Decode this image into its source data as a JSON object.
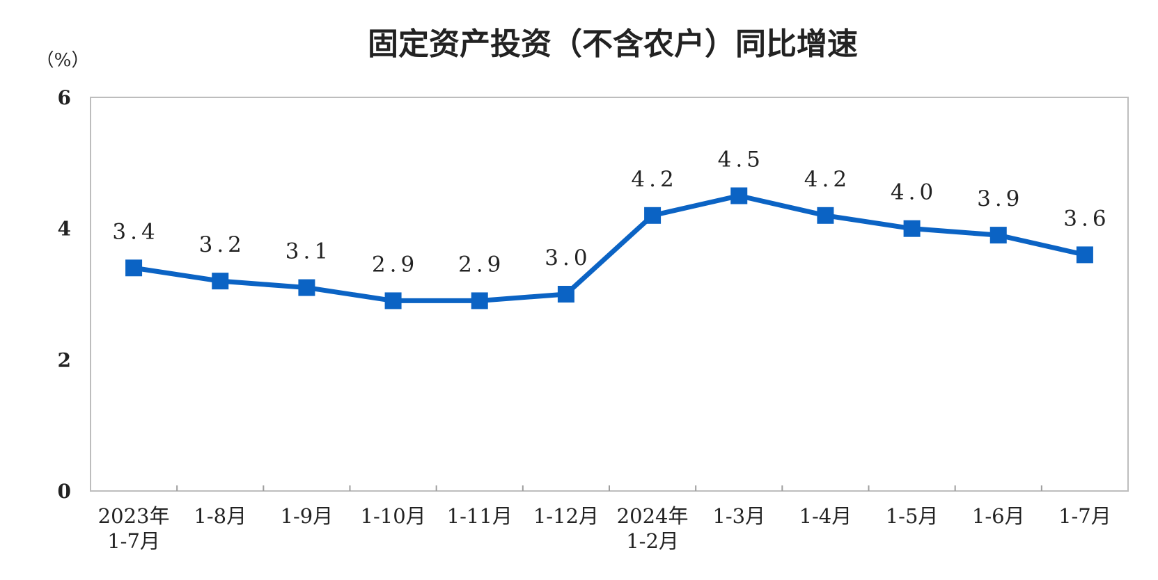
{
  "chart_data": {
    "type": "line",
    "title": "固定资产投资（不含农户）同比增速",
    "y_unit": "（%）",
    "ylim": [
      0,
      6
    ],
    "yticks": [
      "0",
      "2",
      "4",
      "6"
    ],
    "grid": false,
    "categories": [
      [
        "2023年",
        "1-7月"
      ],
      [
        "1-8月"
      ],
      [
        "1-9月"
      ],
      [
        "1-10月"
      ],
      [
        "1-11月"
      ],
      [
        "1-12月"
      ],
      [
        "2024年",
        "1-2月"
      ],
      [
        "1-3月"
      ],
      [
        "1-4月"
      ],
      [
        "1-5月"
      ],
      [
        "1-6月"
      ],
      [
        "1-7月"
      ]
    ],
    "series": [
      {
        "values": [
          3.4,
          3.2,
          3.1,
          2.9,
          2.9,
          3.0,
          4.2,
          4.5,
          4.2,
          4.0,
          3.9,
          3.6
        ],
        "labels": [
          "3.4",
          "3.2",
          "3.1",
          "2.9",
          "2.9",
          "3.0",
          "4.2",
          "4.5",
          "4.2",
          "4.0",
          "3.9",
          "3.6"
        ],
        "color": "#0b63c4"
      }
    ]
  }
}
